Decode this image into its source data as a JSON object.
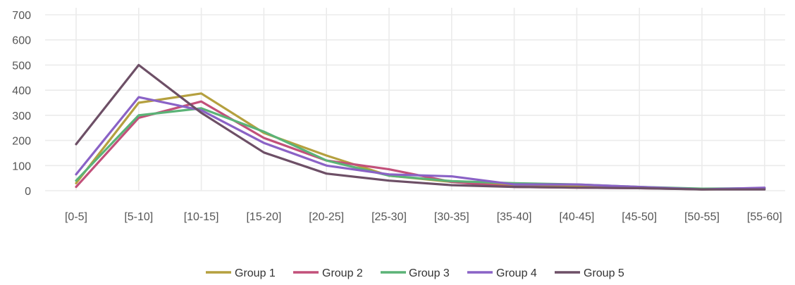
{
  "chart_data": {
    "type": "line",
    "title": "",
    "xlabel": "",
    "ylabel": "",
    "ylim": [
      0,
      700
    ],
    "yticks": [
      0,
      100,
      200,
      300,
      400,
      500,
      600,
      700
    ],
    "grid": true,
    "legend_position": "bottom",
    "categories": [
      "[0-5]",
      "[5-10]",
      "[10-15]",
      "[15-20]",
      "[20-25]",
      "[25-30]",
      "[30-35]",
      "[35-40]",
      "[40-45]",
      "[45-50]",
      "[50-55]",
      "[55-60]"
    ],
    "series": [
      {
        "name": "Group 1",
        "color": "#b5a03f",
        "values": [
          30,
          350,
          387,
          230,
          140,
          60,
          35,
          20,
          18,
          12,
          5,
          8
        ]
      },
      {
        "name": "Group 2",
        "color": "#c2507a",
        "values": [
          15,
          290,
          355,
          210,
          120,
          85,
          35,
          15,
          12,
          10,
          6,
          10
        ]
      },
      {
        "name": "Group 3",
        "color": "#5bb377",
        "values": [
          40,
          300,
          328,
          235,
          120,
          60,
          38,
          30,
          25,
          15,
          8,
          10
        ]
      },
      {
        "name": "Group 4",
        "color": "#8a62c6",
        "values": [
          65,
          372,
          320,
          190,
          100,
          65,
          57,
          25,
          25,
          15,
          5,
          12
        ]
      },
      {
        "name": "Group 5",
        "color": "#6d4f66",
        "values": [
          185,
          500,
          310,
          152,
          68,
          40,
          22,
          15,
          12,
          10,
          5,
          5
        ]
      }
    ]
  }
}
